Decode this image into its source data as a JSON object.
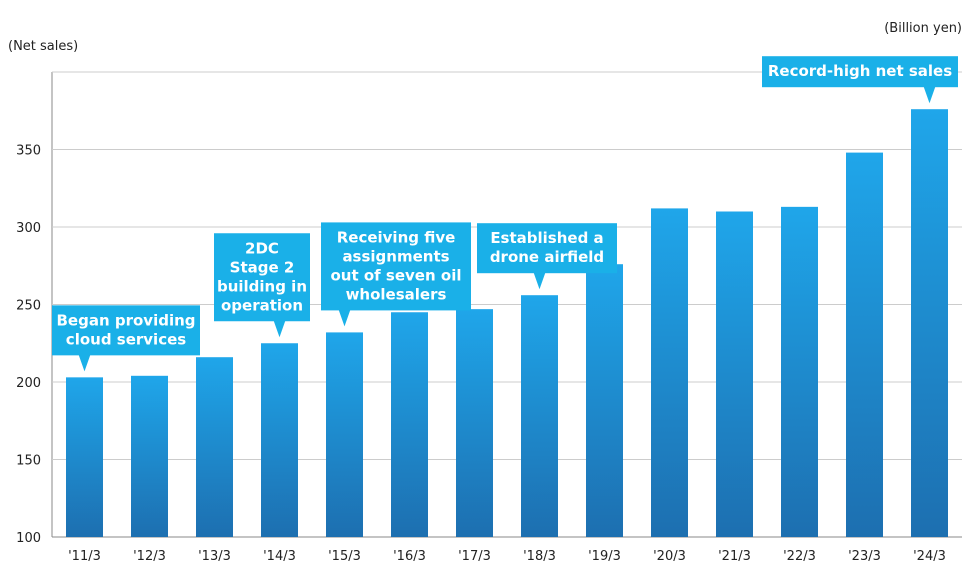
{
  "chart_data": {
    "type": "bar",
    "ylabel": "(Net sales)",
    "unit": "(Billion yen)",
    "ylim": [
      100,
      400
    ],
    "yticks": [
      100,
      150,
      200,
      250,
      300,
      350
    ],
    "categories": [
      "'11/3",
      "'12/3",
      "'13/3",
      "'14/3",
      "'15/3",
      "'16/3",
      "'17/3",
      "'18/3",
      "'19/3",
      "'20/3",
      "'21/3",
      "'22/3",
      "'23/3",
      "'24/3"
    ],
    "values": [
      203,
      204,
      216,
      225,
      232,
      245,
      247,
      256,
      276,
      312,
      310,
      313,
      348,
      376
    ],
    "grid": true,
    "bar_color_top": "#1fa6ea",
    "bar_color_bottom": "#1d6fb0",
    "callout_color": "#1ab0e8",
    "annotations": [
      {
        "index": 0,
        "lines": [
          "Began providing",
          "cloud services"
        ]
      },
      {
        "index": 3,
        "lines": [
          "2DC",
          "Stage 2",
          "building in",
          "operation"
        ]
      },
      {
        "index": 4,
        "lines": [
          "Receiving five",
          "assignments",
          "out of seven oil",
          "wholesalers"
        ]
      },
      {
        "index": 7,
        "lines": [
          "Established a",
          "drone airfield"
        ]
      },
      {
        "index": 13,
        "lines": [
          "Record-high net sales"
        ]
      }
    ]
  }
}
